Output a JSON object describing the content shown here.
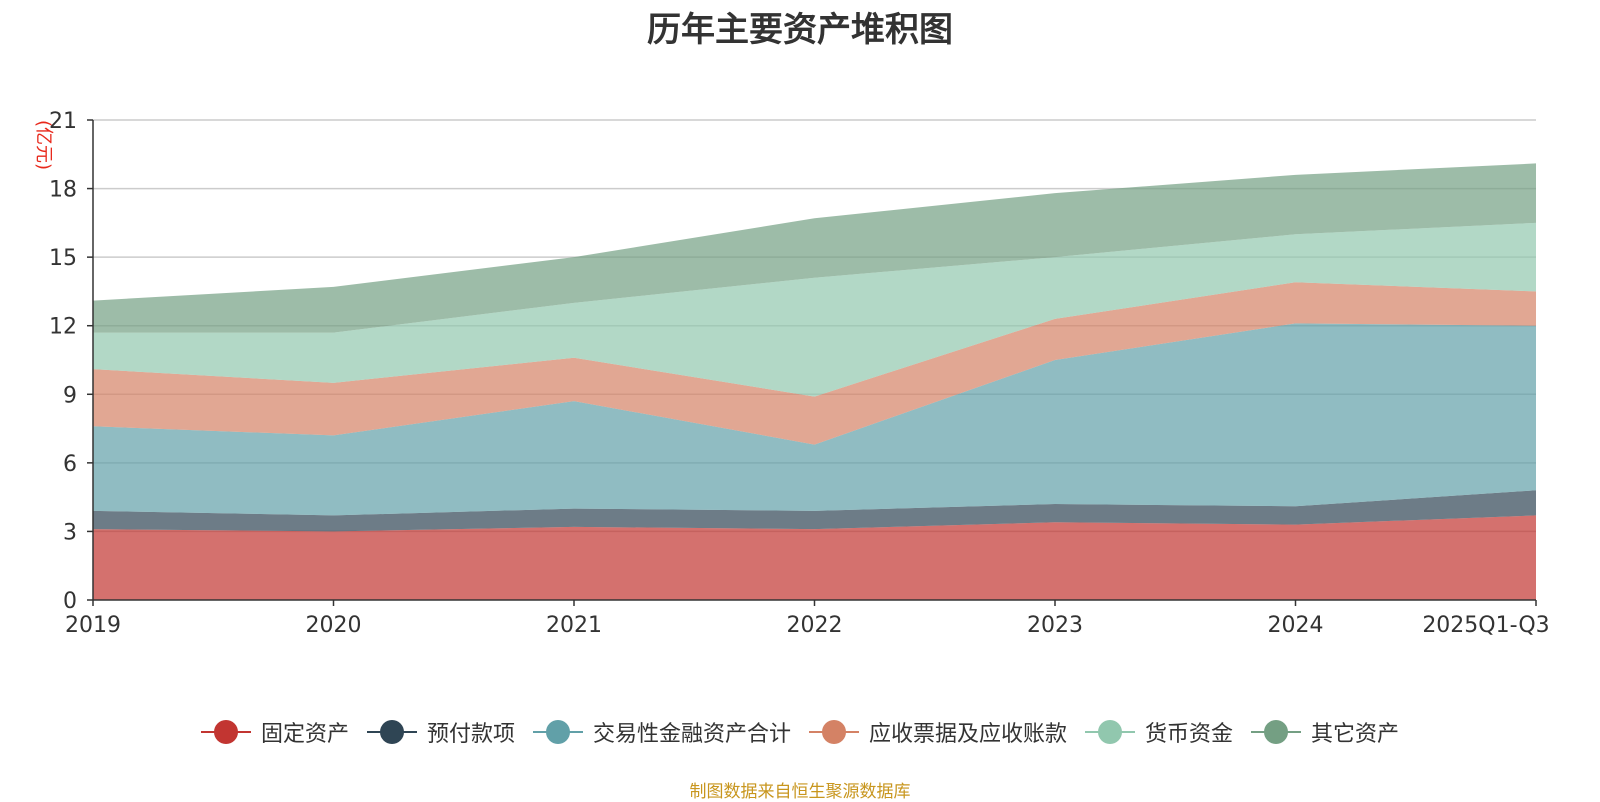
{
  "chart_data": {
    "type": "area",
    "stacked": true,
    "title": "历年主要资产堆积图",
    "ylabel": "(亿元)",
    "xlabel": "",
    "categories": [
      "2019",
      "2020",
      "2021",
      "2022",
      "2023",
      "2024",
      "2025Q1-Q3"
    ],
    "ylim": [
      0,
      21
    ],
    "yticks": [
      0,
      3,
      6,
      9,
      12,
      15,
      18,
      21
    ],
    "grid": true,
    "legend_position": "bottom",
    "series": [
      {
        "name": "固定资产",
        "color": "#c23531",
        "values": [
          3.1,
          3.0,
          3.2,
          3.1,
          3.4,
          3.3,
          3.7
        ]
      },
      {
        "name": "预付款项",
        "color": "#2f4554",
        "values": [
          0.8,
          0.7,
          0.8,
          0.8,
          0.8,
          0.8,
          1.1
        ]
      },
      {
        "name": "交易性金融资产合计",
        "color": "#61a0a8",
        "values": [
          3.7,
          3.5,
          4.7,
          2.9,
          6.3,
          8.0,
          7.2
        ]
      },
      {
        "name": "应收票据及应收账款",
        "color": "#d48265",
        "values": [
          2.5,
          2.3,
          1.9,
          2.1,
          1.8,
          1.8,
          1.5
        ]
      },
      {
        "name": "货币资金",
        "color": "#91c7ae",
        "values": [
          1.6,
          2.2,
          2.4,
          5.2,
          2.7,
          2.1,
          3.0
        ]
      },
      {
        "name": "其它资产",
        "color": "#749f83",
        "values": [
          1.4,
          2.0,
          2.0,
          2.6,
          2.8,
          2.6,
          2.6
        ]
      }
    ]
  },
  "footer": {
    "source": "制图数据来自恒生聚源数据库"
  }
}
